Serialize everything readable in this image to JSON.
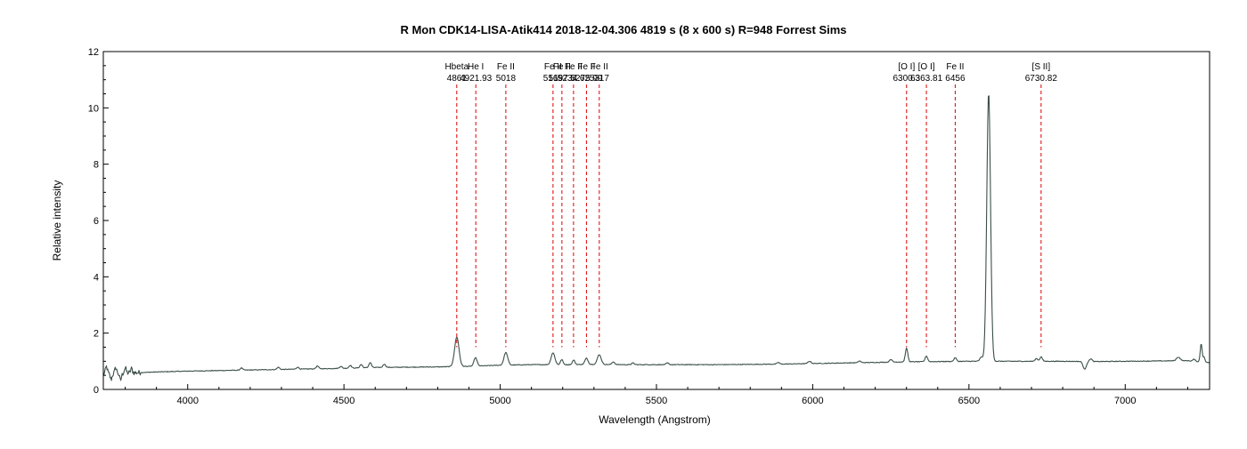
{
  "chart_data": {
    "type": "line",
    "title": "R Mon CDK14-LISA-Atik414  2018-12-04.306  4819 s (8 x 600 s) R=948  Forrest Sims",
    "xlabel": "Wavelength (Angstrom)",
    "ylabel": "Relative intensity",
    "xlim": [
      3730,
      7270
    ],
    "ylim": [
      0,
      12
    ],
    "xticks": [
      4000,
      4500,
      5000,
      5500,
      6000,
      6500,
      7000
    ],
    "yticks": [
      0,
      2,
      4,
      6,
      8,
      10,
      12
    ],
    "grid": false,
    "legend": "none",
    "colors": {
      "spectrum": "#3b4f4a",
      "marker": "#dd0000",
      "axes": "#000000"
    },
    "spectrum": {
      "baseline": [
        [
          3730,
          0.55
        ],
        [
          3800,
          0.58
        ],
        [
          3900,
          0.62
        ],
        [
          4000,
          0.65
        ],
        [
          4100,
          0.67
        ],
        [
          4200,
          0.69
        ],
        [
          4300,
          0.71
        ],
        [
          4400,
          0.73
        ],
        [
          4500,
          0.75
        ],
        [
          4600,
          0.78
        ],
        [
          4700,
          0.79
        ],
        [
          4800,
          0.8
        ],
        [
          4900,
          0.82
        ],
        [
          5000,
          0.86
        ],
        [
          5100,
          0.88
        ],
        [
          5200,
          0.88
        ],
        [
          5300,
          0.89
        ],
        [
          5400,
          0.88
        ],
        [
          5500,
          0.88
        ],
        [
          5600,
          0.88
        ],
        [
          5700,
          0.88
        ],
        [
          5800,
          0.89
        ],
        [
          5900,
          0.9
        ],
        [
          6000,
          0.92
        ],
        [
          6100,
          0.94
        ],
        [
          6200,
          0.96
        ],
        [
          6300,
          0.98
        ],
        [
          6400,
          0.99
        ],
        [
          6500,
          1.0
        ],
        [
          6600,
          1.0
        ],
        [
          6700,
          1.0
        ],
        [
          6800,
          1.0
        ],
        [
          6900,
          0.99
        ],
        [
          7000,
          1.0
        ],
        [
          7100,
          1.01
        ],
        [
          7200,
          1.02
        ],
        [
          7270,
          0.95
        ]
      ],
      "peaks": [
        {
          "x": 3740,
          "h": 0.25,
          "w": 3
        },
        {
          "x": 3755,
          "h": -0.2,
          "w": 3
        },
        {
          "x": 3770,
          "h": 0.2,
          "w": 3
        },
        {
          "x": 3785,
          "h": -0.25,
          "w": 3
        },
        {
          "x": 3800,
          "h": 0.18,
          "w": 3
        },
        {
          "x": 3820,
          "h": 0.15,
          "w": 3
        },
        {
          "x": 4172,
          "h": 0.08,
          "w": 4
        },
        {
          "x": 4290,
          "h": 0.08,
          "w": 4
        },
        {
          "x": 4352,
          "h": 0.07,
          "w": 4
        },
        {
          "x": 4415,
          "h": 0.1,
          "w": 4
        },
        {
          "x": 4490,
          "h": 0.07,
          "w": 4
        },
        {
          "x": 4520,
          "h": 0.1,
          "w": 4
        },
        {
          "x": 4555,
          "h": 0.12,
          "w": 4
        },
        {
          "x": 4584,
          "h": 0.18,
          "w": 4
        },
        {
          "x": 4629,
          "h": 0.12,
          "w": 4
        },
        {
          "x": 4861,
          "h": 1.05,
          "w": 7
        },
        {
          "x": 4921,
          "h": 0.3,
          "w": 5
        },
        {
          "x": 5018,
          "h": 0.45,
          "w": 6
        },
        {
          "x": 5169,
          "h": 0.42,
          "w": 6
        },
        {
          "x": 5197,
          "h": 0.18,
          "w": 4
        },
        {
          "x": 5235,
          "h": 0.16,
          "w": 4
        },
        {
          "x": 5276,
          "h": 0.22,
          "w": 5
        },
        {
          "x": 5317,
          "h": 0.35,
          "w": 6
        },
        {
          "x": 5362,
          "h": 0.1,
          "w": 4
        },
        {
          "x": 5425,
          "h": 0.06,
          "w": 4
        },
        {
          "x": 5535,
          "h": 0.06,
          "w": 4
        },
        {
          "x": 5890,
          "h": 0.06,
          "w": 4
        },
        {
          "x": 5990,
          "h": 0.08,
          "w": 5
        },
        {
          "x": 6150,
          "h": 0.06,
          "w": 4
        },
        {
          "x": 6250,
          "h": 0.1,
          "w": 4
        },
        {
          "x": 6300.3,
          "h": 0.48,
          "w": 4
        },
        {
          "x": 6363.81,
          "h": 0.2,
          "w": 4
        },
        {
          "x": 6456,
          "h": 0.13,
          "w": 4
        },
        {
          "x": 6540,
          "h": 0.15,
          "w": 5
        },
        {
          "x": 6563,
          "h": 9.55,
          "w": 6
        },
        {
          "x": 6716,
          "h": 0.1,
          "w": 4
        },
        {
          "x": 6731,
          "h": 0.16,
          "w": 4
        },
        {
          "x": 6870,
          "h": -0.28,
          "w": 5
        },
        {
          "x": 6890,
          "h": 0.1,
          "w": 4
        },
        {
          "x": 7170,
          "h": 0.13,
          "w": 6
        },
        {
          "x": 7220,
          "h": 0.07,
          "w": 4
        },
        {
          "x": 7243,
          "h": 0.65,
          "w": 3
        },
        {
          "x": 7252,
          "h": 0.18,
          "w": 3
        }
      ]
    },
    "line_markers": [
      {
        "name": "Hbeta",
        "wavelength": 4861
      },
      {
        "name": "He I",
        "wavelength": 4921.93
      },
      {
        "name": "Fe II",
        "wavelength": 5018
      },
      {
        "name": "Fe II",
        "wavelength": 5169
      },
      {
        "name": "Fe II",
        "wavelength": 5197.5
      },
      {
        "name": "Fe II",
        "wavelength": 5234.62
      },
      {
        "name": "Fe II",
        "wavelength": 5275.99
      },
      {
        "name": "Fe II",
        "wavelength": 5317
      },
      {
        "name": "[O I]",
        "wavelength": 6300.3
      },
      {
        "name": "[O I]",
        "wavelength": 6363.81
      },
      {
        "name": "Fe II",
        "wavelength": 6456
      },
      {
        "name": "[S II]",
        "wavelength": 6730.82
      }
    ]
  }
}
